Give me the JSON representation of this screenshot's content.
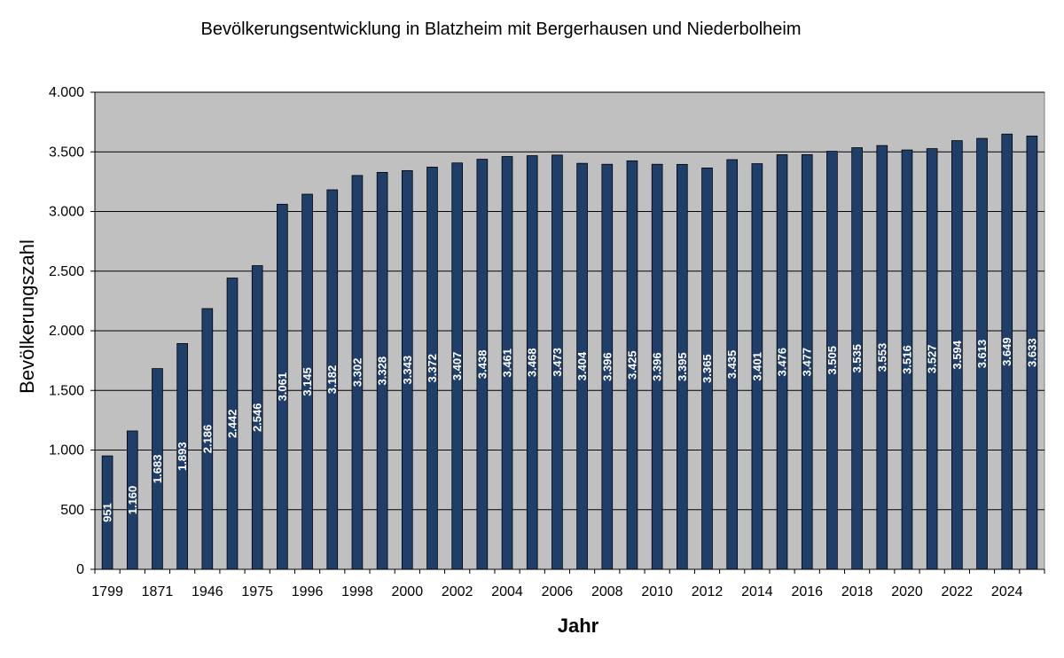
{
  "chart_data": {
    "type": "bar",
    "title": "Bevölkerungsentwicklung in Blatzheim mit Bergerhausen und Niederbolheim",
    "xlabel": "Jahr",
    "ylabel": "Bevölkerungszahl",
    "ylim": [
      0,
      4000
    ],
    "yticks": [
      0,
      500,
      1000,
      1500,
      2000,
      2500,
      3000,
      3500,
      4000
    ],
    "ytick_labels": [
      "0",
      "500",
      "1.000",
      "1.500",
      "2.000",
      "2.500",
      "3.000",
      "3.500",
      "4.000"
    ],
    "grid": true,
    "categories": [
      "1799",
      "",
      "1871",
      "",
      "1946",
      "",
      "1975",
      "",
      "1996",
      "",
      "1998",
      "",
      "2000",
      "",
      "2002",
      "",
      "2004",
      "",
      "2006",
      "",
      "2008",
      "",
      "2010",
      "",
      "2012",
      "",
      "2014",
      "",
      "2016",
      "",
      "2018",
      "",
      "2020",
      "",
      "2022",
      "",
      "2024",
      ""
    ],
    "values": [
      951,
      1160,
      1683,
      1893,
      2186,
      2442,
      2546,
      3061,
      3145,
      3182,
      3302,
      3328,
      3343,
      3372,
      3407,
      3438,
      3461,
      3468,
      3473,
      3404,
      3396,
      3425,
      3396,
      3395,
      3365,
      3435,
      3401,
      3476,
      3477,
      3505,
      3535,
      3553,
      3516,
      3527,
      3594,
      3613,
      3649,
      3633
    ],
    "value_labels": [
      "951",
      "1.160",
      "1.683",
      "1.893",
      "2.186",
      "2.442",
      "2.546",
      "3.061",
      "3.145",
      "3.182",
      "3.302",
      "3.328",
      "3.343",
      "3.372",
      "3.407",
      "3.438",
      "3.461",
      "3.468",
      "3.473",
      "3.404",
      "3.396",
      "3.425",
      "3.396",
      "3.395",
      "3.365",
      "3.435",
      "3.401",
      "3.476",
      "3.477",
      "3.505",
      "3.535",
      "3.553",
      "3.516",
      "3.527",
      "3.594",
      "3.613",
      "3.649",
      "3.633"
    ],
    "colors": {
      "bar": "#1F3F6A",
      "plot_bg": "#C0C0C0",
      "grid": "#000000"
    }
  }
}
